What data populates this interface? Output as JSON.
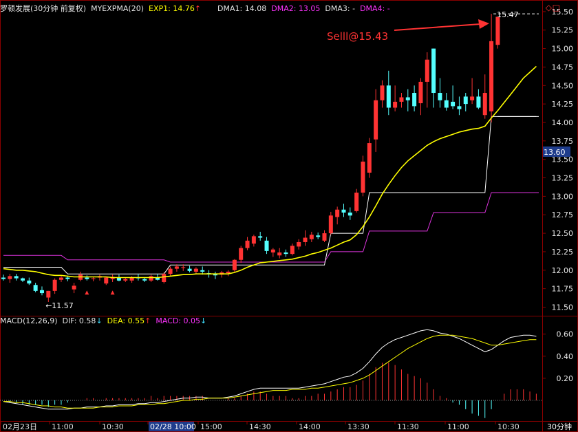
{
  "header": {
    "stock": "罗顿发展(30分钟 前复权)",
    "indicator": "MYEXPMA(20)",
    "exp1_label": "EXP1: 14.76",
    "exp1_arrow": "↑",
    "dma1": "DMA1: 14.08",
    "dma2": "DMA2: 13.05",
    "dma3": "DMA3: -",
    "dma4": "DMA4: -"
  },
  "macd_header": {
    "name": "MACD(12,26,9)",
    "dif": "DIF: 0.58",
    "dif_arrow": "↓",
    "dea": "DEA: 0.55",
    "dea_arrow": "↑",
    "macd": "MACD: 0.05",
    "macd_arrow": "↓"
  },
  "annotations": {
    "sell_text": "Selll@15.43",
    "high_label": "15.47",
    "low_label": "11.57",
    "current_price": "13.60"
  },
  "period_button": "30分钟",
  "x_labels": [
    "02月23日",
    "11:00",
    "10:30",
    "02/28 10:00",
    "15:00",
    "14:30",
    "14:00",
    "13:30",
    "11:30",
    "11:00",
    "10:30"
  ],
  "colors": {
    "up": "#ff3333",
    "down": "#54ffff",
    "ema": "#ffff00",
    "dma1": "#ffffff",
    "dma2": "#dd33dd",
    "dif": "#ffffff",
    "dea": "#ffff00",
    "grid": "#8b0000"
  },
  "chart_data": [
    {
      "type": "candlestick",
      "title": "罗顿发展(30分钟 前复权)",
      "ylim": [
        11.43,
        15.62
      ],
      "yticks": [
        11.5,
        11.75,
        12.0,
        12.25,
        12.5,
        12.75,
        13.0,
        13.25,
        13.5,
        13.75,
        14.0,
        14.25,
        14.5,
        14.75,
        15.0,
        15.25,
        15.5
      ],
      "candles": [
        {
          "o": 11.9,
          "h": 11.94,
          "l": 11.86,
          "c": 11.88
        },
        {
          "o": 11.88,
          "h": 11.95,
          "l": 11.83,
          "c": 11.92
        },
        {
          "o": 11.92,
          "h": 11.95,
          "l": 11.86,
          "c": 11.89
        },
        {
          "o": 11.89,
          "h": 11.9,
          "l": 11.84,
          "c": 11.86
        },
        {
          "o": 11.86,
          "h": 11.9,
          "l": 11.8,
          "c": 11.82
        },
        {
          "o": 11.8,
          "h": 11.83,
          "l": 11.7,
          "c": 11.72
        },
        {
          "o": 11.73,
          "h": 11.78,
          "l": 11.66,
          "c": 11.69
        },
        {
          "o": 11.63,
          "h": 11.72,
          "l": 11.57,
          "c": 11.72
        },
        {
          "o": 11.72,
          "h": 11.89,
          "l": 11.68,
          "c": 11.87
        },
        {
          "o": 11.87,
          "h": 11.93,
          "l": 11.84,
          "c": 11.9
        },
        {
          "o": 11.9,
          "h": 11.92,
          "l": 11.85,
          "c": 11.88
        },
        {
          "o": 11.74,
          "h": 11.83,
          "l": 11.69,
          "c": 11.79
        },
        {
          "o": 11.87,
          "h": 11.98,
          "l": 11.85,
          "c": 11.94
        },
        {
          "o": 11.9,
          "h": 11.93,
          "l": 11.86,
          "c": 11.88
        },
        {
          "o": 11.88,
          "h": 11.91,
          "l": 11.85,
          "c": 11.89
        },
        {
          "o": 11.9,
          "h": 11.94,
          "l": 11.86,
          "c": 11.92
        },
        {
          "o": 11.82,
          "h": 11.91,
          "l": 11.8,
          "c": 11.9
        },
        {
          "o": 11.88,
          "h": 11.94,
          "l": 11.84,
          "c": 11.91
        },
        {
          "o": 11.9,
          "h": 11.94,
          "l": 11.85,
          "c": 11.86
        },
        {
          "o": 11.86,
          "h": 11.9,
          "l": 11.84,
          "c": 11.88
        },
        {
          "o": 11.86,
          "h": 11.92,
          "l": 11.83,
          "c": 11.9
        },
        {
          "o": 11.9,
          "h": 11.95,
          "l": 11.86,
          "c": 11.89
        },
        {
          "o": 11.88,
          "h": 11.9,
          "l": 11.84,
          "c": 11.86
        },
        {
          "o": 11.86,
          "h": 11.94,
          "l": 11.84,
          "c": 11.92
        },
        {
          "o": 11.9,
          "h": 11.95,
          "l": 11.86,
          "c": 11.87
        },
        {
          "o": 11.84,
          "h": 11.97,
          "l": 11.82,
          "c": 11.95
        },
        {
          "o": 11.95,
          "h": 12.05,
          "l": 11.92,
          "c": 12.02
        },
        {
          "o": 12.02,
          "h": 12.08,
          "l": 11.98,
          "c": 12.05
        },
        {
          "o": 12.03,
          "h": 12.08,
          "l": 11.99,
          "c": 12.04
        },
        {
          "o": 12.02,
          "h": 12.06,
          "l": 11.97,
          "c": 11.99
        },
        {
          "o": 11.98,
          "h": 12.04,
          "l": 11.95,
          "c": 12.02
        },
        {
          "o": 12.0,
          "h": 12.05,
          "l": 11.94,
          "c": 11.98
        },
        {
          "o": 11.96,
          "h": 12.0,
          "l": 11.9,
          "c": 11.95
        },
        {
          "o": 11.95,
          "h": 11.98,
          "l": 11.88,
          "c": 11.93
        },
        {
          "o": 11.94,
          "h": 11.99,
          "l": 11.9,
          "c": 11.97
        },
        {
          "o": 11.96,
          "h": 12.0,
          "l": 11.92,
          "c": 11.98
        },
        {
          "o": 12.0,
          "h": 12.15,
          "l": 11.98,
          "c": 12.14
        },
        {
          "o": 12.14,
          "h": 12.33,
          "l": 12.1,
          "c": 12.3
        },
        {
          "o": 12.3,
          "h": 12.45,
          "l": 12.27,
          "c": 12.4
        },
        {
          "o": 12.36,
          "h": 12.48,
          "l": 12.32,
          "c": 12.46
        },
        {
          "o": 12.46,
          "h": 12.52,
          "l": 12.4,
          "c": 12.44
        },
        {
          "o": 12.4,
          "h": 12.45,
          "l": 12.22,
          "c": 12.26
        },
        {
          "o": 12.24,
          "h": 12.3,
          "l": 12.18,
          "c": 12.28
        },
        {
          "o": 12.2,
          "h": 12.3,
          "l": 12.16,
          "c": 12.24
        },
        {
          "o": 12.24,
          "h": 12.28,
          "l": 12.18,
          "c": 12.22
        },
        {
          "o": 12.22,
          "h": 12.36,
          "l": 12.2,
          "c": 12.33
        },
        {
          "o": 12.32,
          "h": 12.42,
          "l": 12.28,
          "c": 12.38
        },
        {
          "o": 12.38,
          "h": 12.54,
          "l": 12.33,
          "c": 12.44
        },
        {
          "o": 12.42,
          "h": 12.52,
          "l": 12.38,
          "c": 12.48
        },
        {
          "o": 12.47,
          "h": 12.51,
          "l": 12.42,
          "c": 12.45
        },
        {
          "o": 12.4,
          "h": 12.54,
          "l": 12.38,
          "c": 12.5
        },
        {
          "o": 12.5,
          "h": 12.79,
          "l": 12.48,
          "c": 12.74
        },
        {
          "o": 12.72,
          "h": 12.86,
          "l": 12.62,
          "c": 12.82
        },
        {
          "o": 12.82,
          "h": 12.9,
          "l": 12.72,
          "c": 12.78
        },
        {
          "o": 12.78,
          "h": 12.85,
          "l": 12.68,
          "c": 12.74
        },
        {
          "o": 12.8,
          "h": 13.1,
          "l": 12.78,
          "c": 13.05
        },
        {
          "o": 13.05,
          "h": 13.55,
          "l": 13.0,
          "c": 13.47
        },
        {
          "o": 13.32,
          "h": 13.79,
          "l": 13.25,
          "c": 13.72
        },
        {
          "o": 13.77,
          "h": 14.45,
          "l": 13.6,
          "c": 14.3
        },
        {
          "o": 14.3,
          "h": 14.57,
          "l": 14.2,
          "c": 14.5
        },
        {
          "o": 14.5,
          "h": 14.7,
          "l": 14.1,
          "c": 14.2
        },
        {
          "o": 14.2,
          "h": 14.5,
          "l": 14.15,
          "c": 14.28
        },
        {
          "o": 14.28,
          "h": 14.4,
          "l": 14.2,
          "c": 14.34
        },
        {
          "o": 14.34,
          "h": 14.45,
          "l": 14.15,
          "c": 14.3
        },
        {
          "o": 14.4,
          "h": 14.5,
          "l": 14.15,
          "c": 14.22
        },
        {
          "o": 14.26,
          "h": 14.6,
          "l": 14.1,
          "c": 14.55
        },
        {
          "o": 14.55,
          "h": 14.95,
          "l": 14.2,
          "c": 14.85
        },
        {
          "o": 15.0,
          "h": 15.0,
          "l": 14.2,
          "c": 14.4
        },
        {
          "o": 14.4,
          "h": 14.6,
          "l": 14.2,
          "c": 14.3
        },
        {
          "o": 14.3,
          "h": 14.4,
          "l": 14.16,
          "c": 14.2
        },
        {
          "o": 14.28,
          "h": 14.5,
          "l": 14.18,
          "c": 14.22
        },
        {
          "o": 14.22,
          "h": 14.35,
          "l": 14.1,
          "c": 14.18
        },
        {
          "o": 14.35,
          "h": 14.4,
          "l": 14.15,
          "c": 14.25
        },
        {
          "o": 14.3,
          "h": 14.6,
          "l": 14.25,
          "c": 14.35
        },
        {
          "o": 14.35,
          "h": 14.45,
          "l": 14.18,
          "c": 14.2
        },
        {
          "o": 14.1,
          "h": 14.65,
          "l": 14.05,
          "c": 14.4
        },
        {
          "o": 14.15,
          "h": 15.47,
          "l": 14.0,
          "c": 15.1
        },
        {
          "o": 15.05,
          "h": 15.43,
          "l": 15.0,
          "c": 15.43
        }
      ],
      "series": [
        {
          "name": "EXP1",
          "values": [
            12.02,
            12.01,
            12.0,
            12.0,
            11.99,
            11.98,
            11.96,
            11.94,
            11.93,
            11.93,
            11.92,
            11.91,
            11.91,
            11.91,
            11.91,
            11.91,
            11.91,
            11.9,
            11.9,
            11.9,
            11.9,
            11.9,
            11.9,
            11.9,
            11.9,
            11.91,
            11.92,
            11.93,
            11.94,
            11.94,
            11.95,
            11.95,
            11.95,
            11.95,
            11.95,
            11.95,
            11.97,
            12.0,
            12.04,
            12.07,
            12.1,
            12.11,
            12.12,
            12.13,
            12.14,
            12.15,
            12.17,
            12.19,
            12.22,
            12.24,
            12.27,
            12.3,
            12.34,
            12.38,
            12.41,
            12.48,
            12.59,
            12.72,
            12.87,
            13.03,
            13.16,
            13.28,
            13.39,
            13.48,
            13.55,
            13.62,
            13.69,
            13.74,
            13.78,
            13.81,
            13.84,
            13.87,
            13.89,
            13.91,
            13.92,
            13.95,
            14.06,
            14.16,
            14.27,
            14.38,
            14.49,
            14.6,
            14.68,
            14.76
          ]
        },
        {
          "name": "DMA1",
          "values": [
            12.04,
            12.04,
            12.04,
            12.04,
            12.04,
            12.04,
            12.04,
            12.04,
            12.04,
            12.04,
            11.95,
            11.95,
            11.95,
            11.95,
            11.95,
            11.95,
            11.95,
            11.95,
            11.95,
            11.95,
            11.95,
            11.95,
            11.95,
            11.95,
            11.95,
            11.95,
            12.07,
            12.07,
            12.07,
            12.07,
            12.07,
            12.07,
            12.07,
            12.07,
            12.07,
            12.07,
            12.07,
            12.07,
            12.07,
            12.07,
            12.07,
            12.07,
            12.07,
            12.07,
            12.07,
            12.07,
            12.07,
            12.07,
            12.07,
            12.07,
            12.07,
            12.5,
            12.5,
            12.5,
            12.5,
            12.5,
            12.5,
            13.05,
            13.05,
            13.05,
            13.05,
            13.05,
            13.05,
            13.05,
            13.05,
            13.05,
            13.05,
            13.05,
            13.05,
            13.05,
            13.05,
            13.05,
            13.05,
            13.05,
            13.05,
            13.05,
            14.08,
            14.08,
            14.08,
            14.08,
            14.08,
            14.08,
            14.08,
            14.08
          ]
        },
        {
          "name": "DMA2",
          "values": [
            12.2,
            12.2,
            12.2,
            12.2,
            12.2,
            12.2,
            12.2,
            12.2,
            12.2,
            12.2,
            12.14,
            12.14,
            12.14,
            12.14,
            12.14,
            12.14,
            12.14,
            12.14,
            12.14,
            12.14,
            12.14,
            12.14,
            12.14,
            12.14,
            12.14,
            12.14,
            12.11,
            12.11,
            12.11,
            12.11,
            12.11,
            12.11,
            12.11,
            12.11,
            12.11,
            12.11,
            12.11,
            12.11,
            12.11,
            12.11,
            12.11,
            12.11,
            12.11,
            12.11,
            12.11,
            12.11,
            12.11,
            12.11,
            12.11,
            12.11,
            12.11,
            12.25,
            12.25,
            12.25,
            12.25,
            12.25,
            12.25,
            12.53,
            12.53,
            12.53,
            12.53,
            12.53,
            12.53,
            12.53,
            12.53,
            12.53,
            12.53,
            12.78,
            12.78,
            12.78,
            12.78,
            12.78,
            12.78,
            12.78,
            12.78,
            12.78,
            13.05,
            13.05,
            13.05,
            13.05,
            13.05,
            13.05,
            13.05,
            13.05
          ]
        }
      ]
    },
    {
      "type": "line",
      "title": "MACD(12,26,9)",
      "ylim": [
        -0.13,
        0.75
      ],
      "yticks": [
        0.2,
        0.4,
        0.6
      ],
      "series": [
        {
          "name": "DIF",
          "values": [
            -0.01,
            -0.02,
            -0.03,
            -0.04,
            -0.05,
            -0.06,
            -0.07,
            -0.08,
            -0.08,
            -0.08,
            -0.08,
            -0.07,
            -0.07,
            -0.06,
            -0.06,
            -0.06,
            -0.05,
            -0.05,
            -0.04,
            -0.04,
            -0.04,
            -0.03,
            -0.03,
            -0.02,
            -0.02,
            -0.01,
            0.0,
            0.01,
            0.02,
            0.02,
            0.03,
            0.03,
            0.02,
            0.02,
            0.02,
            0.03,
            0.04,
            0.06,
            0.08,
            0.1,
            0.11,
            0.11,
            0.11,
            0.11,
            0.11,
            0.11,
            0.11,
            0.12,
            0.13,
            0.14,
            0.15,
            0.17,
            0.19,
            0.21,
            0.22,
            0.25,
            0.29,
            0.35,
            0.42,
            0.48,
            0.52,
            0.55,
            0.57,
            0.59,
            0.61,
            0.63,
            0.64,
            0.63,
            0.61,
            0.6,
            0.58,
            0.56,
            0.53,
            0.5,
            0.47,
            0.44,
            0.46,
            0.5,
            0.54,
            0.57,
            0.58,
            0.59,
            0.59,
            0.58
          ]
        },
        {
          "name": "DEA",
          "values": [
            -0.01,
            -0.01,
            -0.02,
            -0.02,
            -0.03,
            -0.04,
            -0.05,
            -0.05,
            -0.06,
            -0.06,
            -0.07,
            -0.07,
            -0.07,
            -0.07,
            -0.07,
            -0.06,
            -0.06,
            -0.06,
            -0.05,
            -0.05,
            -0.05,
            -0.04,
            -0.04,
            -0.04,
            -0.03,
            -0.03,
            -0.02,
            -0.01,
            0.0,
            0.0,
            0.01,
            0.01,
            0.02,
            0.02,
            0.02,
            0.02,
            0.03,
            0.04,
            0.05,
            0.06,
            0.07,
            0.08,
            0.09,
            0.09,
            0.09,
            0.1,
            0.1,
            0.1,
            0.11,
            0.11,
            0.12,
            0.13,
            0.14,
            0.15,
            0.16,
            0.18,
            0.2,
            0.23,
            0.27,
            0.31,
            0.35,
            0.39,
            0.43,
            0.47,
            0.5,
            0.53,
            0.56,
            0.58,
            0.59,
            0.59,
            0.59,
            0.58,
            0.57,
            0.56,
            0.54,
            0.52,
            0.5,
            0.5,
            0.51,
            0.52,
            0.53,
            0.54,
            0.55,
            0.55
          ]
        }
      ]
    }
  ]
}
